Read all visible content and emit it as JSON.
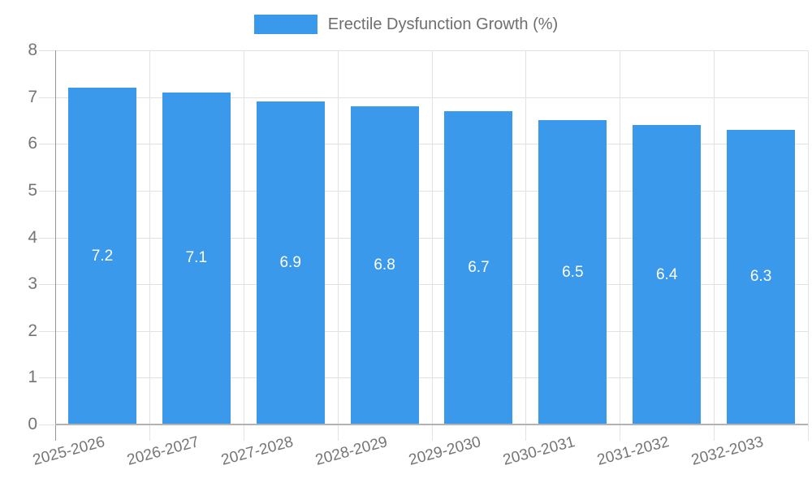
{
  "legend": {
    "label": "Erectile Dysfunction Growth (%)"
  },
  "chart_data": {
    "type": "bar",
    "title": "",
    "categories": [
      "2025-2026",
      "2026-2027",
      "2027-2028",
      "2028-2029",
      "2029-2030",
      "2030-2031",
      "2031-2032",
      "2032-2033"
    ],
    "series": [
      {
        "name": "Erectile Dysfunction Growth (%)",
        "values": [
          7.2,
          7.1,
          6.9,
          6.8,
          6.7,
          6.5,
          6.4,
          6.3
        ]
      }
    ],
    "value_labels": [
      "7.2",
      "7.1",
      "6.9",
      "6.8",
      "6.7",
      "6.5",
      "6.4",
      "6.3"
    ],
    "xlabel": "",
    "ylabel": "",
    "ylim": [
      0,
      8
    ],
    "y_ticks": [
      0,
      1,
      2,
      3,
      4,
      5,
      6,
      7,
      8
    ],
    "grid": true,
    "legend_position": "top",
    "x_tick_rotation_deg": -15
  },
  "colors": {
    "bar": "#3b99ec",
    "value_label": "#ffffff",
    "axis_text": "#757575",
    "legend_text": "#6e6e6e",
    "gridline": "#e2e2e2",
    "axis_line": "#959595",
    "baseline": "#b3b3b3",
    "background": "#ffffff"
  }
}
